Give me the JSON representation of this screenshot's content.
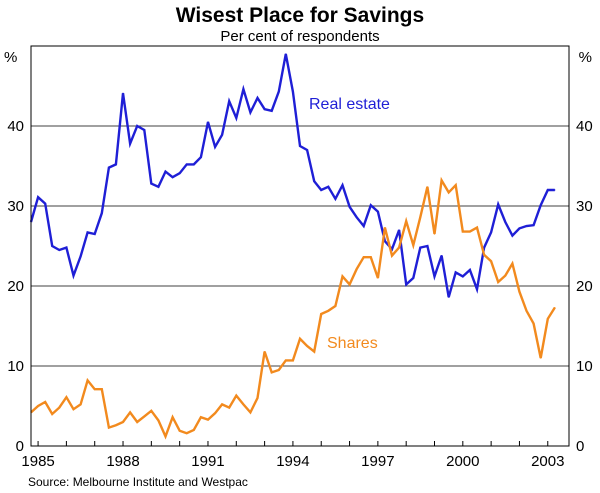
{
  "chart_data": {
    "type": "line",
    "title": "Wisest Place for Savings",
    "subtitle": "Per cent of respondents",
    "source": "Source: Melbourne Institute and Westpac",
    "y_unit_left": "%",
    "y_unit_right": "%",
    "ylim": [
      0,
      50
    ],
    "yticks": [
      0,
      10,
      20,
      30,
      40
    ],
    "xlim": [
      1984.75,
      2003.75
    ],
    "xticks": [
      {
        "value": 1985,
        "label": "1985"
      },
      {
        "value": 1988,
        "label": "1988"
      },
      {
        "value": 1991,
        "label": "1991"
      },
      {
        "value": 1994,
        "label": "1994"
      },
      {
        "value": 1997,
        "label": "1997"
      },
      {
        "value": 2000,
        "label": "2000"
      },
      {
        "value": 2003,
        "label": "2003"
      }
    ],
    "grid": true,
    "series": [
      {
        "name": "Real estate",
        "label": "Real estate",
        "color": "#1f1fd6",
        "points": [
          [
            1984.75,
            28.0
          ],
          [
            1985.0,
            31.1
          ],
          [
            1985.25,
            30.3
          ],
          [
            1985.5,
            25.0
          ],
          [
            1985.75,
            24.5
          ],
          [
            1986.0,
            24.8
          ],
          [
            1986.25,
            21.3
          ],
          [
            1986.5,
            23.7
          ],
          [
            1986.75,
            26.7
          ],
          [
            1987.0,
            26.5
          ],
          [
            1987.25,
            29.1
          ],
          [
            1987.5,
            34.8
          ],
          [
            1987.75,
            35.2
          ],
          [
            1988.0,
            44.1
          ],
          [
            1988.25,
            37.8
          ],
          [
            1988.5,
            40.0
          ],
          [
            1988.75,
            39.5
          ],
          [
            1989.0,
            32.8
          ],
          [
            1989.25,
            32.4
          ],
          [
            1989.5,
            34.3
          ],
          [
            1989.75,
            33.6
          ],
          [
            1990.0,
            34.1
          ],
          [
            1990.25,
            35.2
          ],
          [
            1990.5,
            35.2
          ],
          [
            1990.75,
            36.1
          ],
          [
            1991.0,
            40.5
          ],
          [
            1991.25,
            37.4
          ],
          [
            1991.5,
            38.9
          ],
          [
            1991.75,
            43.1
          ],
          [
            1992.0,
            41.0
          ],
          [
            1992.25,
            44.6
          ],
          [
            1992.5,
            41.7
          ],
          [
            1992.75,
            43.5
          ],
          [
            1993.0,
            42.1
          ],
          [
            1993.25,
            41.9
          ],
          [
            1993.5,
            44.3
          ],
          [
            1993.75,
            49.0
          ],
          [
            1994.0,
            44.3
          ],
          [
            1994.25,
            37.5
          ],
          [
            1994.5,
            37.0
          ],
          [
            1994.75,
            33.1
          ],
          [
            1995.0,
            32.0
          ],
          [
            1995.25,
            32.4
          ],
          [
            1995.5,
            30.9
          ],
          [
            1995.75,
            32.6
          ],
          [
            1996.0,
            29.9
          ],
          [
            1996.25,
            28.6
          ],
          [
            1996.5,
            27.5
          ],
          [
            1996.75,
            30.1
          ],
          [
            1997.0,
            29.3
          ],
          [
            1997.25,
            25.6
          ],
          [
            1997.5,
            24.6
          ],
          [
            1997.75,
            27.0
          ],
          [
            1998.0,
            20.2
          ],
          [
            1998.25,
            21.0
          ],
          [
            1998.5,
            24.8
          ],
          [
            1998.75,
            25.0
          ],
          [
            1999.0,
            21.2
          ],
          [
            1999.25,
            23.8
          ],
          [
            1999.5,
            18.6
          ],
          [
            1999.75,
            21.7
          ],
          [
            2000.0,
            21.2
          ],
          [
            2000.25,
            22.0
          ],
          [
            2000.5,
            19.6
          ],
          [
            2000.75,
            24.8
          ],
          [
            2001.0,
            26.7
          ],
          [
            2001.25,
            30.2
          ],
          [
            2001.5,
            28.0
          ],
          [
            2001.75,
            26.3
          ],
          [
            2002.0,
            27.2
          ],
          [
            2002.25,
            27.5
          ],
          [
            2002.5,
            27.6
          ],
          [
            2002.75,
            30.1
          ],
          [
            2003.0,
            32.0
          ],
          [
            2003.25,
            32.0
          ]
        ]
      },
      {
        "name": "Shares",
        "label": "Shares",
        "color": "#f28a1e",
        "points": [
          [
            1984.75,
            4.2
          ],
          [
            1985.0,
            5.0
          ],
          [
            1985.25,
            5.5
          ],
          [
            1985.5,
            4.0
          ],
          [
            1985.75,
            4.8
          ],
          [
            1986.0,
            6.1
          ],
          [
            1986.25,
            4.6
          ],
          [
            1986.5,
            5.2
          ],
          [
            1986.75,
            8.2
          ],
          [
            1987.0,
            7.1
          ],
          [
            1987.25,
            7.1
          ],
          [
            1987.5,
            2.3
          ],
          [
            1987.75,
            2.6
          ],
          [
            1988.0,
            3.0
          ],
          [
            1988.25,
            4.2
          ],
          [
            1988.5,
            3.0
          ],
          [
            1988.75,
            3.7
          ],
          [
            1989.0,
            4.4
          ],
          [
            1989.25,
            3.2
          ],
          [
            1989.5,
            1.2
          ],
          [
            1989.75,
            3.6
          ],
          [
            1990.0,
            1.9
          ],
          [
            1990.25,
            1.6
          ],
          [
            1990.5,
            2.0
          ],
          [
            1990.75,
            3.6
          ],
          [
            1991.0,
            3.3
          ],
          [
            1991.25,
            4.1
          ],
          [
            1991.5,
            5.2
          ],
          [
            1991.75,
            4.8
          ],
          [
            1992.0,
            6.3
          ],
          [
            1992.25,
            5.2
          ],
          [
            1992.5,
            4.2
          ],
          [
            1992.75,
            6.0
          ],
          [
            1993.0,
            11.8
          ],
          [
            1993.25,
            9.2
          ],
          [
            1993.5,
            9.5
          ],
          [
            1993.75,
            10.7
          ],
          [
            1994.0,
            10.7
          ],
          [
            1994.25,
            13.4
          ],
          [
            1994.5,
            12.5
          ],
          [
            1994.75,
            11.8
          ],
          [
            1995.0,
            16.5
          ],
          [
            1995.25,
            16.9
          ],
          [
            1995.5,
            17.5
          ],
          [
            1995.75,
            21.2
          ],
          [
            1996.0,
            20.2
          ],
          [
            1996.25,
            22.1
          ],
          [
            1996.5,
            23.6
          ],
          [
            1996.75,
            23.6
          ],
          [
            1997.0,
            21.0
          ],
          [
            1997.25,
            27.3
          ],
          [
            1997.5,
            23.8
          ],
          [
            1997.75,
            24.8
          ],
          [
            1998.0,
            28.1
          ],
          [
            1998.25,
            25.1
          ],
          [
            1998.5,
            28.6
          ],
          [
            1998.75,
            32.4
          ],
          [
            1999.0,
            26.5
          ],
          [
            1999.25,
            33.2
          ],
          [
            1999.5,
            31.7
          ],
          [
            1999.75,
            32.6
          ],
          [
            2000.0,
            26.8
          ],
          [
            2000.25,
            26.8
          ],
          [
            2000.5,
            27.3
          ],
          [
            2000.75,
            23.9
          ],
          [
            2001.0,
            23.1
          ],
          [
            2001.25,
            20.5
          ],
          [
            2001.5,
            21.3
          ],
          [
            2001.75,
            22.8
          ],
          [
            2002.0,
            19.3
          ],
          [
            2002.25,
            16.9
          ],
          [
            2002.5,
            15.3
          ],
          [
            2002.75,
            11.0
          ],
          [
            2003.0,
            15.9
          ],
          [
            2003.25,
            17.3
          ]
        ]
      }
    ]
  }
}
